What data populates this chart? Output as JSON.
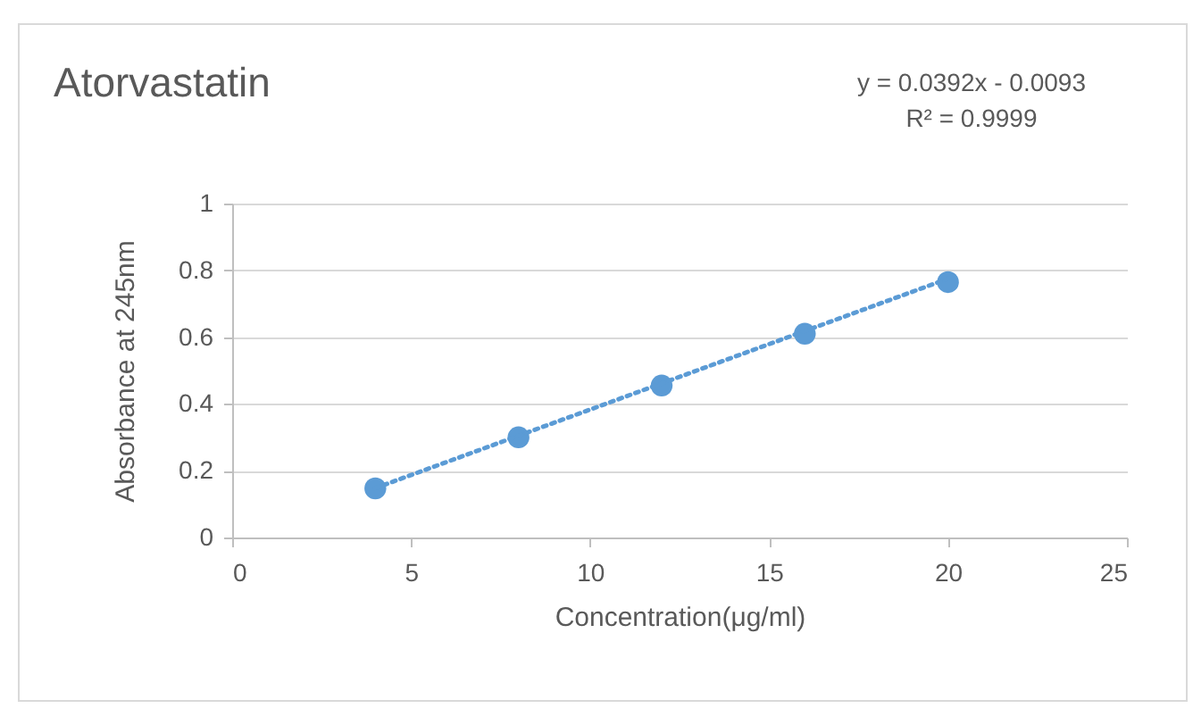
{
  "chart_data": {
    "type": "scatter",
    "title": "Atorvastatin",
    "xlabel": "Concentration(μg/ml)",
    "ylabel": "Absorbance at 245nm",
    "annotations": [
      "y = 0.0392x - 0.0093",
      "R² = 0.9999"
    ],
    "series": [
      {
        "color": "#5b9bd5",
        "marker": "circle",
        "x": [
          4,
          8,
          12,
          16,
          20
        ],
        "values": [
          0.147,
          0.3,
          0.455,
          0.61,
          0.765
        ]
      },
      {
        "type": "line",
        "color": "#5b9bd5",
        "marker": "none",
        "line_style": "dotted",
        "x": [
          4,
          20
        ],
        "values": [
          0.148,
          0.775
        ]
      }
    ],
    "xlim": [
      0,
      25
    ],
    "xticks": [
      0,
      5,
      10,
      15,
      20,
      25
    ],
    "ylim": [
      0,
      1
    ],
    "yticks": [
      0,
      0.2,
      0.4,
      0.6,
      0.8,
      1
    ],
    "grid": "y"
  }
}
